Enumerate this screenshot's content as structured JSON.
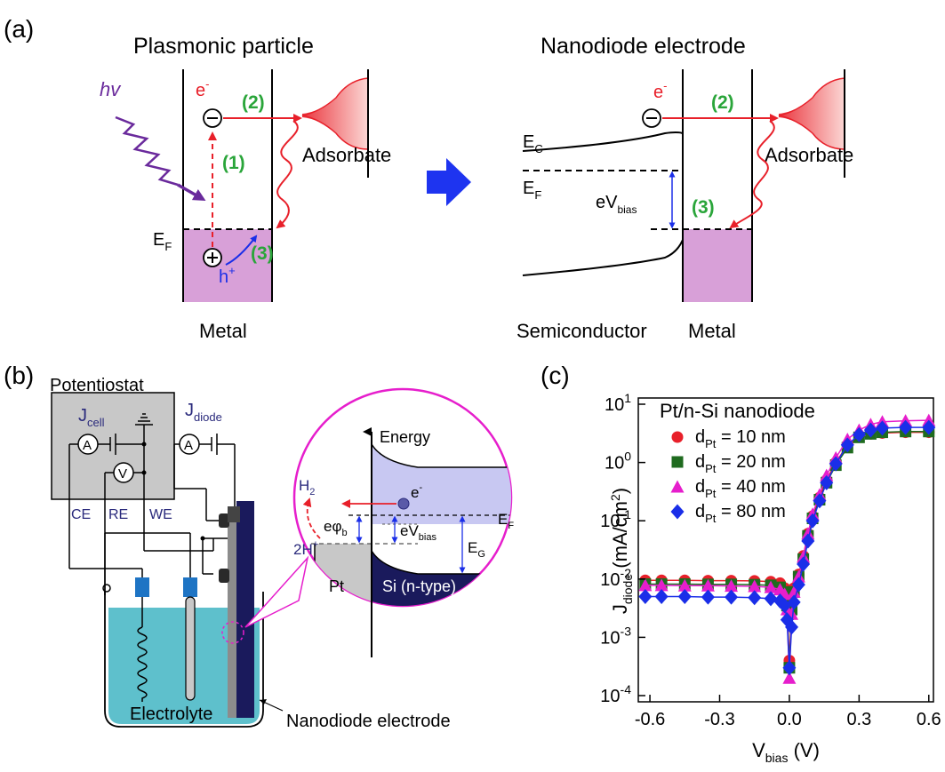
{
  "panel_a": {
    "label": "(a)",
    "left": {
      "title": "Plasmonic particle",
      "photon": "hv",
      "electron": "e",
      "electron_sup": "-",
      "step1": "(1)",
      "step2": "(2)",
      "step3": "(3)",
      "fermi": "E",
      "fermi_sub": "F",
      "hole": "h",
      "hole_sup": "+",
      "adsorbate": "Adsorbate",
      "metal": "Metal"
    },
    "right": {
      "title": "Nanodiode electrode",
      "electron": "e",
      "electron_sup": "-",
      "step2": "(2)",
      "step3": "(3)",
      "ec": "E",
      "ec_sub": "C",
      "ef": "E",
      "ef_sub": "F",
      "ev": "eV",
      "ev_sub": "bias",
      "adsorbate": "Adsorbate",
      "semiconductor": "Semiconductor",
      "metal": "Metal"
    }
  },
  "panel_b": {
    "label": "(b)",
    "potentiostat": "Potentiostat",
    "jcell": "J",
    "jcell_sub": "cell",
    "jdiode": "J",
    "jdiode_sub": "diode",
    "ammeter": "A",
    "voltmeter": "V",
    "ammeter2": "A",
    "ce": "CE",
    "re": "RE",
    "we": "WE",
    "electrolyte": "Electrolyte",
    "nanodiode": "Nanodiode electrode",
    "inset": {
      "energy": "Energy",
      "h2": "H",
      "h2_sub": "2",
      "twoh": "2H",
      "twoh_sup": "+",
      "ephi": "eφ",
      "ephi_sub": "b",
      "ev": "eV",
      "ev_sub": "bias",
      "eg": "E",
      "eg_sub": "G",
      "ef": "E",
      "ef_sub": "F",
      "e": "e",
      "e_sup": "-",
      "pt": "Pt",
      "si": "Si (n-type)"
    }
  },
  "panel_c": {
    "label": "(c)",
    "legend_title": "Pt/n-Si nanodiode",
    "chart_data": {
      "type": "scatter",
      "title": "",
      "legend_title": "Pt/n-Si nanodiode",
      "xlabel": "V_bias (V)",
      "ylabel": "J_diode (mA/cm^2)",
      "xlim": [
        -0.65,
        0.62
      ],
      "ylim": [
        0.0001,
        10
      ],
      "y_scale": "log",
      "x_ticks": [
        "-0.6",
        "-0.3",
        "0.0",
        "0.3",
        "0.6"
      ],
      "x_tick_values": [
        -0.6,
        -0.3,
        0.0,
        0.3,
        0.6
      ],
      "y_ticks": [
        "10",
        "10",
        "10",
        "10",
        "10",
        "10"
      ],
      "y_tick_exponents": [
        "1",
        "0",
        "-1",
        "-2",
        "-3",
        "-4"
      ],
      "y_tick_values": [
        10,
        1,
        0.1,
        0.01,
        0.001,
        0.0001
      ],
      "grid": false,
      "legend_position": "top-left",
      "series": [
        {
          "name": "d_Pt = 10 nm",
          "label_main": "d",
          "label_sub": "Pt",
          "label_rest": " = 10 nm",
          "color": "#e8202a",
          "marker": "circle",
          "x": [
            -0.62,
            -0.55,
            -0.45,
            -0.35,
            -0.25,
            -0.15,
            -0.08,
            -0.04,
            -0.02,
            -0.01,
            0.0,
            0.01,
            0.02,
            0.04,
            0.06,
            0.08,
            0.1,
            0.13,
            0.16,
            0.2,
            0.25,
            0.3,
            0.35,
            0.4,
            0.5,
            0.6
          ],
          "y": [
            0.0095,
            0.0095,
            0.0095,
            0.0094,
            0.0094,
            0.0093,
            0.009,
            0.0085,
            0.007,
            0.004,
            0.0004,
            0.003,
            0.007,
            0.012,
            0.025,
            0.06,
            0.12,
            0.25,
            0.5,
            1.0,
            2.0,
            2.8,
            3.1,
            3.2,
            3.3,
            3.3
          ]
        },
        {
          "name": "d_Pt = 20 nm",
          "label_main": "d",
          "label_sub": "Pt",
          "label_rest": " = 20 nm",
          "color": "#1f6b1f",
          "marker": "square",
          "x": [
            -0.62,
            -0.55,
            -0.45,
            -0.35,
            -0.25,
            -0.15,
            -0.08,
            -0.04,
            -0.02,
            -0.01,
            0.0,
            0.01,
            0.02,
            0.04,
            0.06,
            0.08,
            0.1,
            0.13,
            0.16,
            0.2,
            0.25,
            0.3,
            0.35,
            0.4,
            0.5,
            0.6
          ],
          "y": [
            0.0082,
            0.0082,
            0.0082,
            0.0081,
            0.0081,
            0.008,
            0.0078,
            0.0072,
            0.006,
            0.0035,
            0.0003,
            0.003,
            0.006,
            0.011,
            0.022,
            0.055,
            0.11,
            0.23,
            0.45,
            0.9,
            1.8,
            2.7,
            3.1,
            3.3,
            3.4,
            3.4
          ]
        },
        {
          "name": "d_Pt = 40 nm",
          "label_main": "d",
          "label_sub": "Pt",
          "label_rest": " = 40 nm",
          "color": "#e61ecc",
          "marker": "triangle",
          "x": [
            -0.62,
            -0.55,
            -0.45,
            -0.35,
            -0.25,
            -0.15,
            -0.08,
            -0.04,
            -0.02,
            -0.01,
            0.0,
            0.01,
            0.02,
            0.04,
            0.06,
            0.08,
            0.1,
            0.13,
            0.16,
            0.2,
            0.25,
            0.3,
            0.35,
            0.4,
            0.5,
            0.6
          ],
          "y": [
            0.0078,
            0.0078,
            0.0077,
            0.0077,
            0.0076,
            0.0075,
            0.0072,
            0.0066,
            0.0055,
            0.003,
            0.0002,
            0.0025,
            0.006,
            0.011,
            0.024,
            0.06,
            0.13,
            0.28,
            0.6,
            1.2,
            2.5,
            3.6,
            4.5,
            5.0,
            5.2,
            5.3
          ]
        },
        {
          "name": "d_Pt = 80 nm",
          "label_main": "d",
          "label_sub": "Pt",
          "label_rest": " = 80 nm",
          "color": "#1a2ee8",
          "marker": "diamond",
          "x": [
            -0.62,
            -0.55,
            -0.45,
            -0.35,
            -0.25,
            -0.15,
            -0.08,
            -0.04,
            -0.02,
            -0.01,
            0.0,
            0.01,
            0.02,
            0.04,
            0.06,
            0.08,
            0.1,
            0.13,
            0.16,
            0.2,
            0.25,
            0.3,
            0.35,
            0.4,
            0.5,
            0.6
          ],
          "y": [
            0.005,
            0.005,
            0.005,
            0.0049,
            0.0049,
            0.0048,
            0.0046,
            0.0042,
            0.0035,
            0.002,
            0.0003,
            0.0015,
            0.004,
            0.008,
            0.018,
            0.045,
            0.1,
            0.22,
            0.45,
            0.95,
            2.0,
            3.0,
            3.6,
            3.9,
            4.0,
            4.0
          ]
        }
      ]
    }
  }
}
